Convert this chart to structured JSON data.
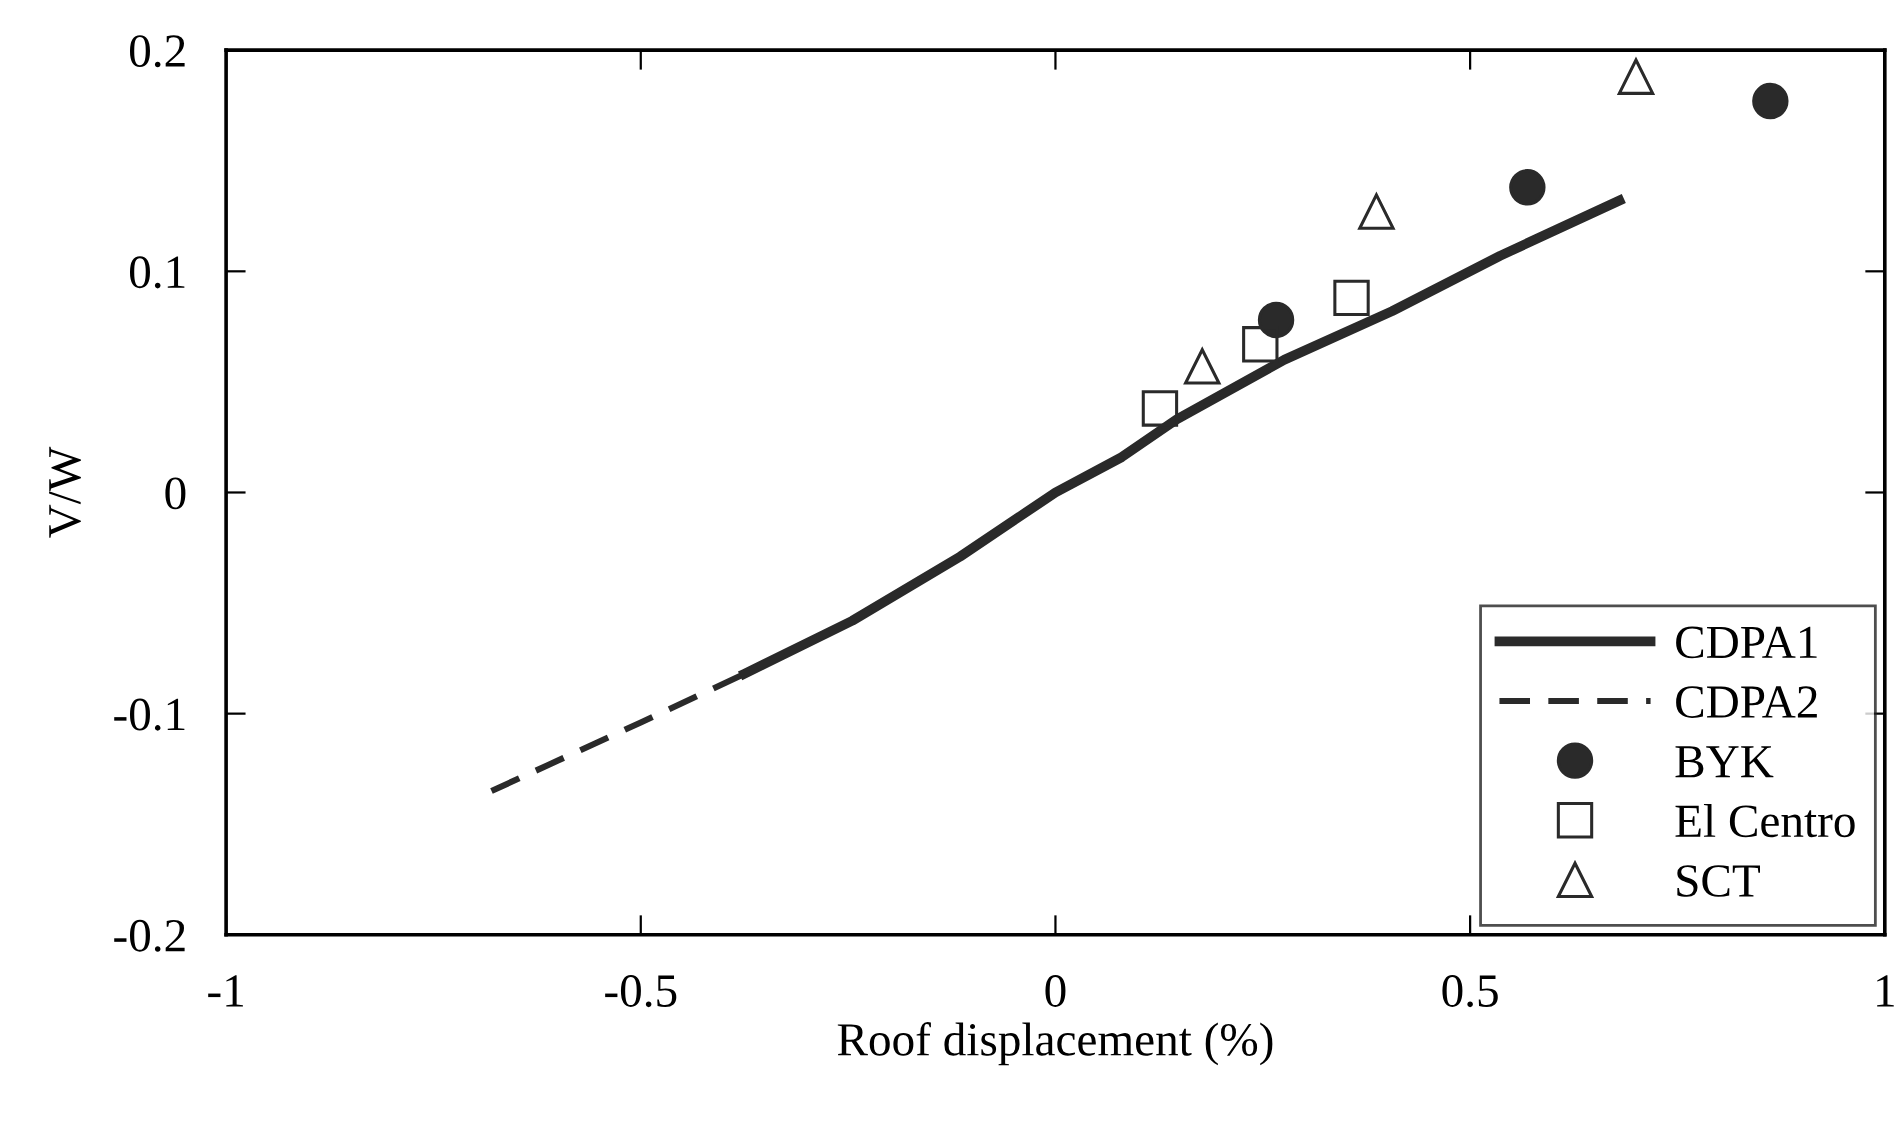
{
  "chart_data": {
    "type": "line",
    "xlabel": "Roof displacement (%)",
    "ylabel": "V/W",
    "xlim": [
      -1,
      1
    ],
    "xticks": [
      -1,
      -0.5,
      0,
      0.5,
      1
    ],
    "ylim": [
      -0.2,
      0.2
    ],
    "yticks": [
      -0.2,
      -0.1,
      0,
      0.1,
      0.2
    ],
    "grid": false,
    "legend": "bottom right",
    "series": [
      {
        "name": "CDPA1",
        "line_style": "solid",
        "color": "#2a2a2a",
        "x": [
          -0.375,
          -0.245,
          -0.115,
          0,
          0.08,
          0.146,
          0.276,
          0.406,
          0.536,
          0.68
        ],
        "values": [
          -0.082,
          -0.058,
          -0.029,
          0,
          0.016,
          0.033,
          0.06,
          0.082,
          0.107,
          0.132
        ]
      },
      {
        "name": "CDPA2",
        "line_style": "dashed",
        "color": "#2a2a2a",
        "x": [
          -0.68,
          -0.5,
          -0.375,
          -0.245,
          -0.115,
          0,
          0.08,
          0.146,
          0.276,
          0.406,
          0.536,
          0.68
        ],
        "values": [
          -0.135,
          -0.104,
          -0.082,
          -0.058,
          -0.029,
          0,
          0.016,
          0.033,
          0.06,
          0.082,
          0.107,
          0.132
        ]
      },
      {
        "name": "BYK",
        "type": "scatter",
        "marker": "circle",
        "color": "#2a2a2a",
        "x": [
          0.266,
          0.569,
          0.862
        ],
        "values": [
          0.078,
          0.138,
          0.177
        ]
      },
      {
        "name": "El Centro",
        "type": "scatter",
        "marker": "square",
        "color": "#2a2a2a",
        "x": [
          0.126,
          0.247,
          0.357
        ],
        "values": [
          0.038,
          0.067,
          0.088
        ]
      },
      {
        "name": "SCT",
        "type": "scatter",
        "marker": "triangle",
        "color": "#2a2a2a",
        "x": [
          0.177,
          0.387,
          0.7
        ],
        "values": [
          0.057,
          0.127,
          0.188
        ]
      }
    ]
  }
}
